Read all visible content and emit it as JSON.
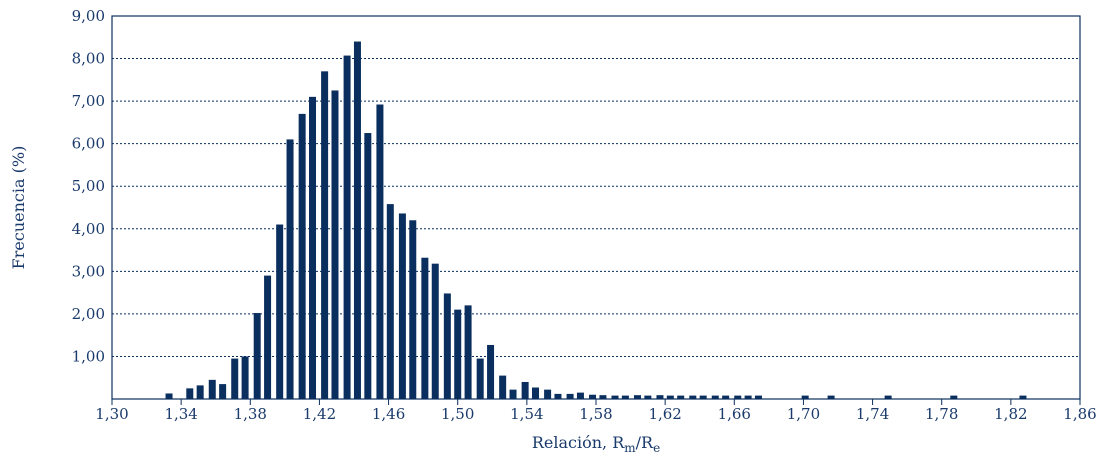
{
  "chart_data": {
    "type": "bar",
    "xlabel": "Relación, R",
    "xlabel_sub1": "m",
    "xlabel_sep": "/R",
    "xlabel_sub2": "e",
    "ylabel": "Frecuencia (%)",
    "xlim": [
      1.3,
      1.86
    ],
    "ylim": [
      0,
      9
    ],
    "x_ticks": [
      "1,30",
      "1,34",
      "1,38",
      "1,42",
      "1,46",
      "1,50",
      "1,54",
      "1,58",
      "1,62",
      "1,66",
      "1,70",
      "1,74",
      "1,78",
      "1,82",
      "1,86"
    ],
    "y_ticks": [
      "1,00",
      "2,00",
      "3,00",
      "4,00",
      "5,00",
      "6,00",
      "7,00",
      "8,00",
      "9,00"
    ],
    "grid": "horizontal-dotted",
    "bar_color": "#0a2f5e",
    "text_color": "#1a3a6b",
    "x": [
      1.333,
      1.345,
      1.351,
      1.358,
      1.364,
      1.371,
      1.377,
      1.384,
      1.39,
      1.397,
      1.403,
      1.41,
      1.416,
      1.423,
      1.429,
      1.436,
      1.442,
      1.448,
      1.455,
      1.461,
      1.468,
      1.474,
      1.481,
      1.487,
      1.494,
      1.5,
      1.506,
      1.513,
      1.519,
      1.526,
      1.532,
      1.539,
      1.545,
      1.552,
      1.558,
      1.565,
      1.571,
      1.578,
      1.584,
      1.591,
      1.597,
      1.604,
      1.61,
      1.617,
      1.623,
      1.629,
      1.636,
      1.642,
      1.649,
      1.655,
      1.662,
      1.668,
      1.674,
      1.701,
      1.716,
      1.749,
      1.787,
      1.827
    ],
    "values": [
      0.13,
      0.25,
      0.32,
      0.45,
      0.35,
      0.95,
      1.0,
      2.02,
      2.9,
      4.1,
      6.1,
      6.7,
      7.1,
      7.7,
      7.25,
      8.07,
      8.4,
      6.25,
      6.92,
      4.58,
      4.36,
      4.2,
      3.32,
      3.18,
      2.48,
      2.1,
      2.2,
      0.95,
      1.27,
      0.55,
      0.22,
      0.4,
      0.27,
      0.22,
      0.12,
      0.12,
      0.15,
      0.1,
      0.09,
      0.08,
      0.08,
      0.09,
      0.08,
      0.09,
      0.08,
      0.08,
      0.08,
      0.08,
      0.08,
      0.08,
      0.08,
      0.08,
      0.08,
      0.08,
      0.08,
      0.08,
      0.08,
      0.08
    ]
  }
}
